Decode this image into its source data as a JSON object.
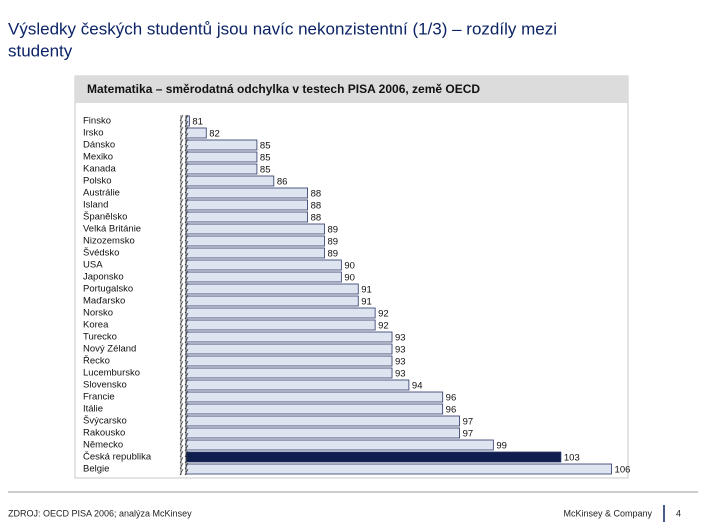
{
  "slide": {
    "title": "Výsledky českých studentů jsou navíc nekonzistentní (1/3) – rozdíly mezi studenty",
    "source": "ZDROJ: OECD PISA 2006; analýza McKinsey",
    "company": "McKinsey & Company",
    "page": "4"
  },
  "chart_data": {
    "type": "bar",
    "orientation": "horizontal",
    "title": "Matematika – směrodatná odchylka v testech PISA 2006, země OECD",
    "categories": [
      "Finsko",
      "Irsko",
      "Dánsko",
      "Mexiko",
      "Kanada",
      "Polsko",
      "Austrálie",
      "Island",
      "Španělsko",
      "Velká Británie",
      "Nizozemsko",
      "Švédsko",
      "USA",
      "Japonsko",
      "Portugalsko",
      "Maďarsko",
      "Norsko",
      "Korea",
      "Turecko",
      "Nový Zéland",
      "Řecko",
      "Lucembursko",
      "Slovensko",
      "Francie",
      "Itálie",
      "Švýcarsko",
      "Rakousko",
      "Německo",
      "Česká republika",
      "Belgie"
    ],
    "values": [
      81,
      82,
      85,
      85,
      85,
      86,
      88,
      88,
      88,
      89,
      89,
      89,
      90,
      90,
      91,
      91,
      92,
      92,
      93,
      93,
      93,
      93,
      94,
      96,
      96,
      97,
      97,
      99,
      103,
      106
    ],
    "colors": [
      "#dfe4f1",
      "#dfe4f1",
      "#dfe4f1",
      "#dfe4f1",
      "#dfe4f1",
      "#dfe4f1",
      "#dfe4f1",
      "#dfe4f1",
      "#dfe4f1",
      "#dfe4f1",
      "#dfe4f1",
      "#dfe4f1",
      "#dfe4f1",
      "#dfe4f1",
      "#dfe4f1",
      "#dfe4f1",
      "#dfe4f1",
      "#dfe4f1",
      "#dfe4f1",
      "#dfe4f1",
      "#dfe4f1",
      "#dfe4f1",
      "#dfe4f1",
      "#dfe4f1",
      "#dfe4f1",
      "#dfe4f1",
      "#dfe4f1",
      "#dfe4f1",
      "#0f1e4e",
      "#dfe4f1"
    ],
    "xlim": [
      80.8,
      106.5
    ],
    "axis_break": true
  }
}
